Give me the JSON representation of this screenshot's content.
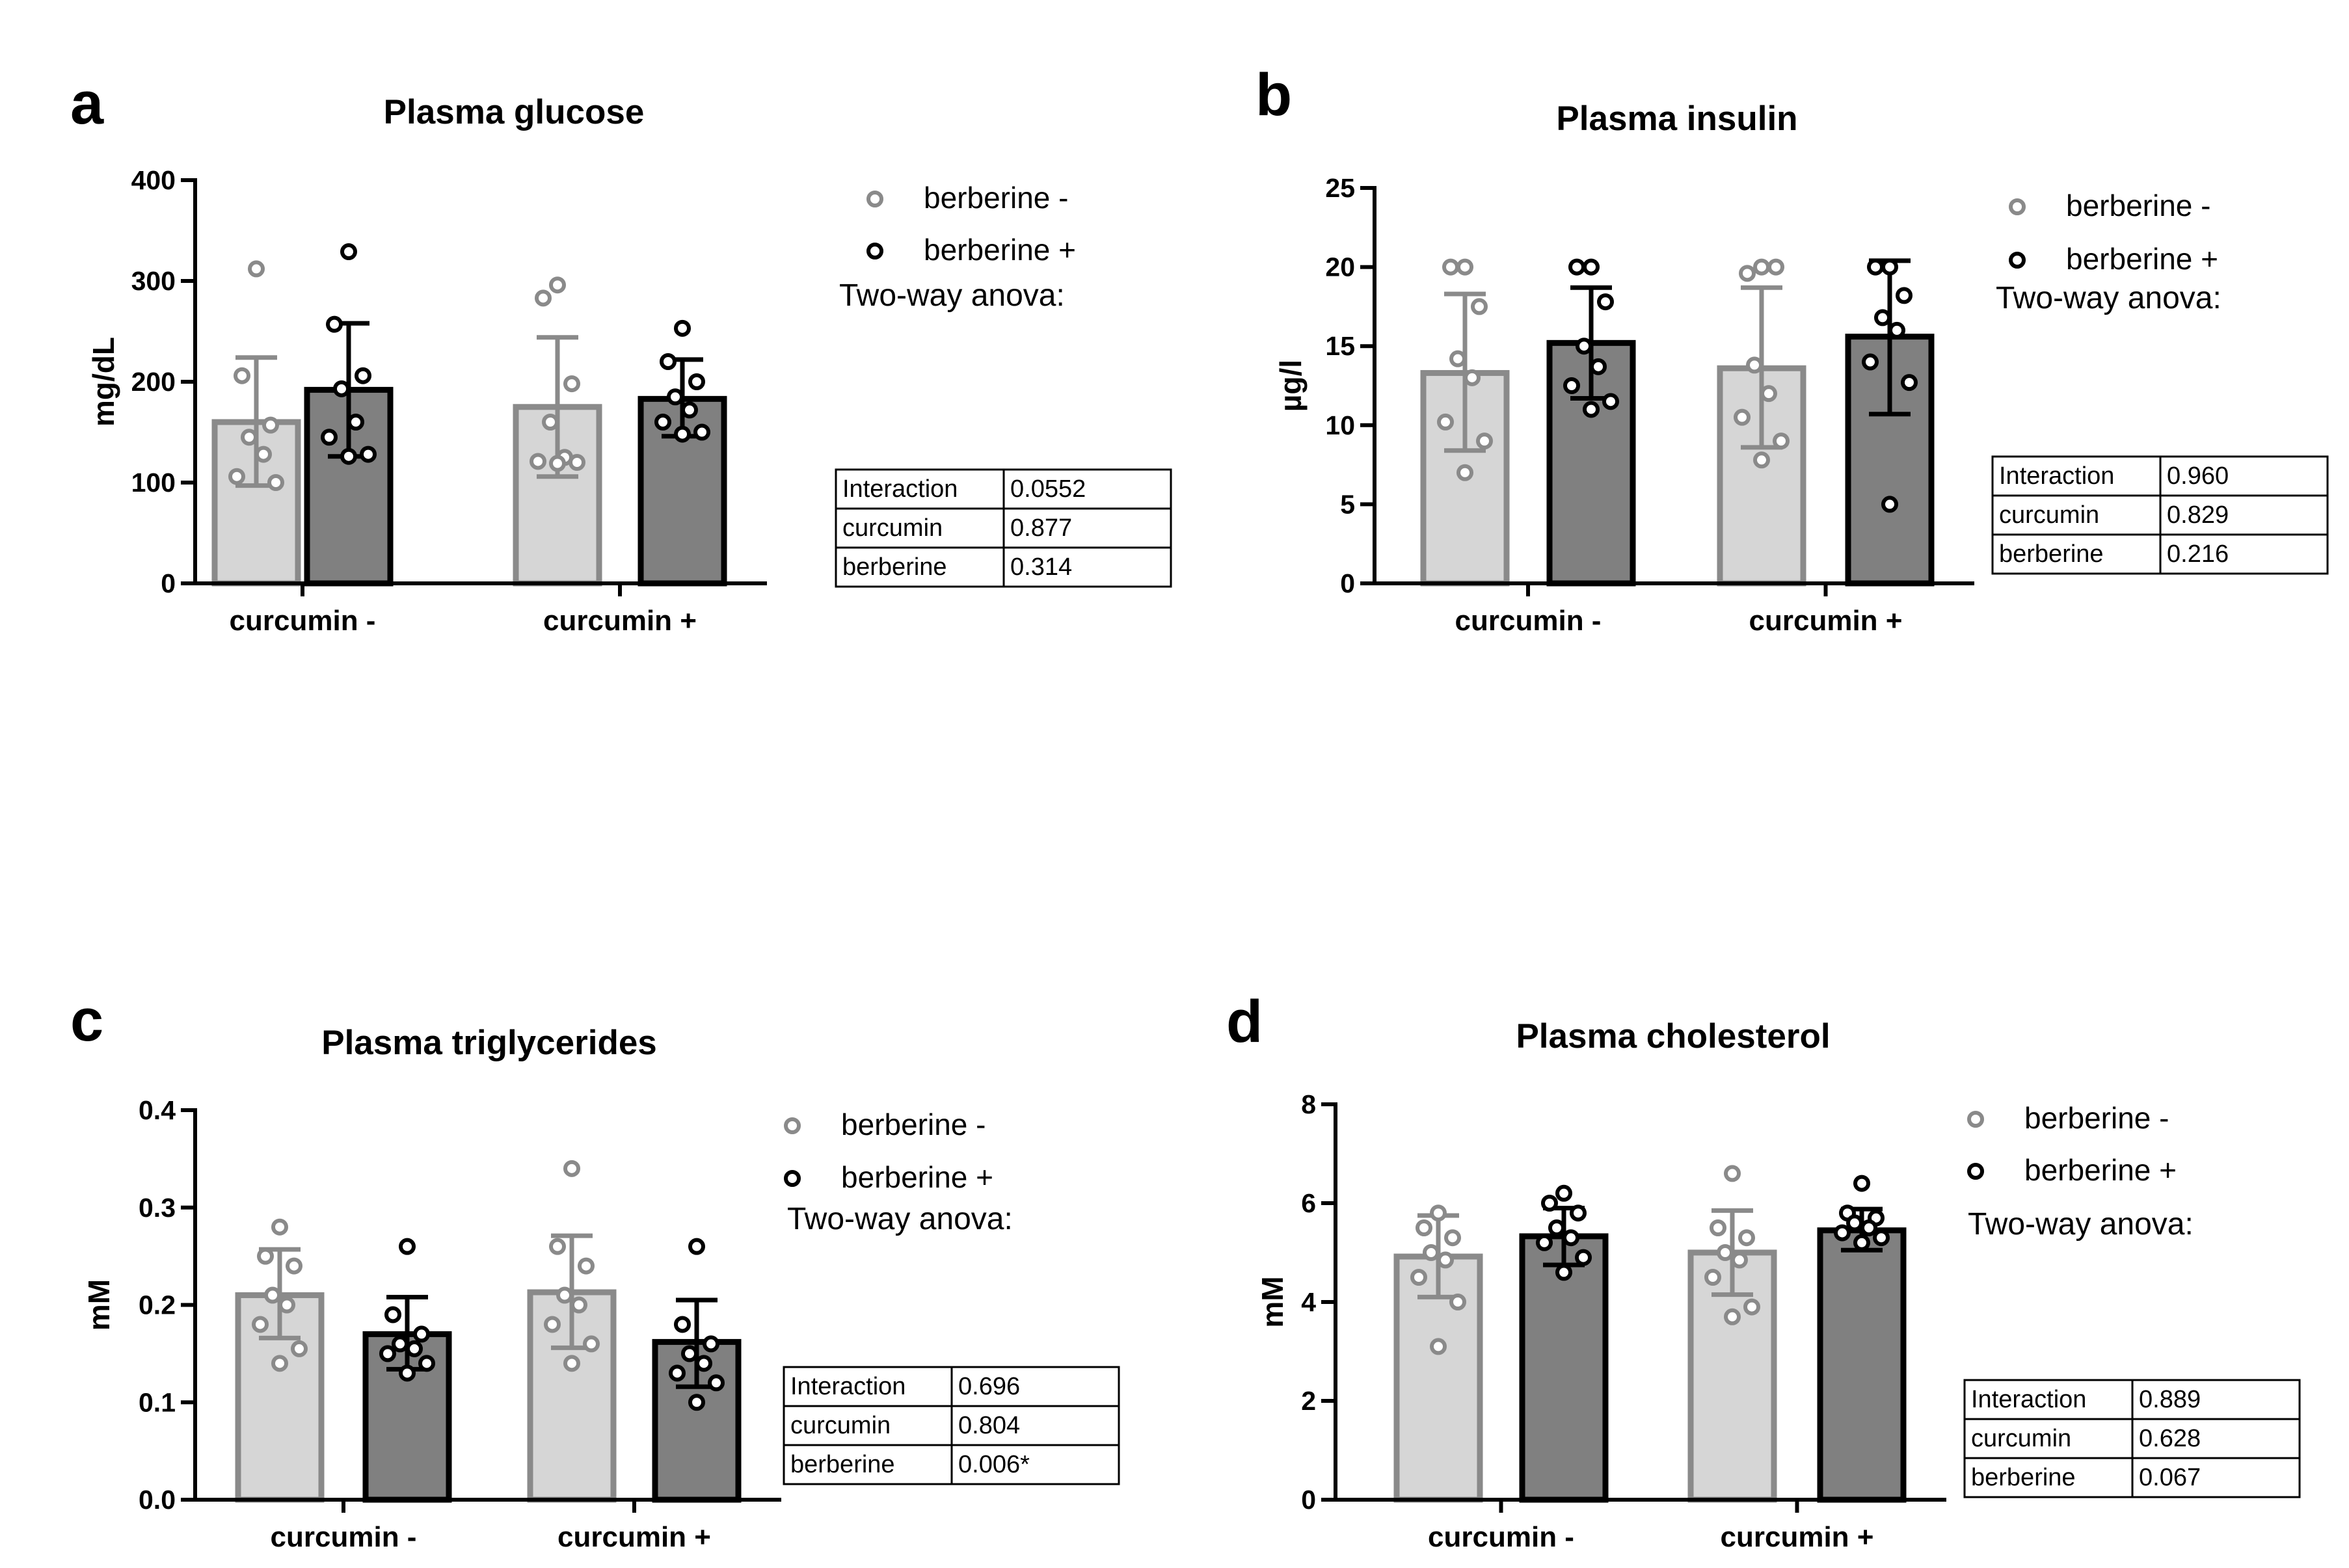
{
  "chart_data": [
    {
      "letter": "a",
      "type": "bar",
      "title": "Plasma glucose",
      "ylabel": "mg/dL",
      "ylim": [
        0,
        400
      ],
      "yticks": [
        "0",
        "100",
        "200",
        "300",
        "400"
      ],
      "categories": [
        "curcumin -",
        "curcumin +"
      ],
      "series": [
        {
          "name": "berberine -",
          "means": [
            160,
            175
          ],
          "sd_low": [
            97,
            106
          ],
          "sd_high": [
            224,
            244
          ],
          "points": [
            [
              312,
              206,
              157,
              145,
              128,
              106,
              100
            ],
            [
              296,
              283,
              198,
              160,
              125,
              121,
              120,
              119
            ]
          ]
        },
        {
          "name": "berberine +",
          "means": [
            192,
            183
          ],
          "sd_low": [
            126,
            146
          ],
          "sd_high": [
            258,
            222
          ],
          "points": [
            [
              329,
              257,
              206,
              193,
              160,
              145,
              128,
              126
            ],
            [
              253,
              220,
              200,
              185,
              172,
              160,
              150,
              148
            ]
          ]
        }
      ],
      "anova": {
        "title": "Two-way anova:",
        "rows": [
          [
            "Interaction",
            "0.0552"
          ],
          [
            "curcumin",
            "0.877"
          ],
          [
            "berberine",
            "0.314"
          ]
        ]
      }
    },
    {
      "letter": "b",
      "type": "bar",
      "title": "Plasma insulin",
      "ylabel": "µg/l",
      "ylim": [
        0,
        25
      ],
      "yticks": [
        "0",
        "5",
        "10",
        "15",
        "20",
        "25"
      ],
      "categories": [
        "curcumin -",
        "curcumin +"
      ],
      "series": [
        {
          "name": "berberine -",
          "means": [
            13.3,
            13.6
          ],
          "sd_low": [
            8.4,
            8.6
          ],
          "sd_high": [
            18.3,
            18.7
          ],
          "points": [
            [
              20,
              20,
              17.5,
              14.2,
              13.0,
              10.2,
              9.0,
              7.0
            ],
            [
              20,
              19.6,
              20,
              13.8,
              12.0,
              10.5,
              9.0,
              7.8
            ]
          ]
        },
        {
          "name": "berberine +",
          "means": [
            15.2,
            15.6
          ],
          "sd_low": [
            11.7,
            10.7
          ],
          "sd_high": [
            18.7,
            20.4
          ],
          "points": [
            [
              20,
              20,
              17.8,
              15.0,
              13.7,
              12.5,
              11.5,
              11.0
            ],
            [
              20,
              20,
              18.2,
              16.8,
              16.0,
              14.0,
              12.7,
              5.0
            ]
          ]
        }
      ],
      "anova": {
        "title": "Two-way anova:",
        "rows": [
          [
            "Interaction",
            "0.960"
          ],
          [
            "curcumin",
            "0.829"
          ],
          [
            "berberine",
            "0.216"
          ]
        ]
      }
    },
    {
      "letter": "c",
      "type": "bar",
      "title": "Plasma triglycerides",
      "ylabel": "mM",
      "ylim": [
        0,
        0.4
      ],
      "yticks": [
        "0.0",
        "0.1",
        "0.2",
        "0.3",
        "0.4"
      ],
      "categories": [
        "curcumin -",
        "curcumin +"
      ],
      "series": [
        {
          "name": "berberine -",
          "means": [
            0.21,
            0.213
          ],
          "sd_low": [
            0.166,
            0.156
          ],
          "sd_high": [
            0.257,
            0.271
          ],
          "points": [
            [
              0.28,
              0.25,
              0.24,
              0.21,
              0.2,
              0.18,
              0.155,
              0.14
            ],
            [
              0.34,
              0.26,
              0.24,
              0.21,
              0.2,
              0.18,
              0.16,
              0.14
            ]
          ]
        },
        {
          "name": "berberine +",
          "means": [
            0.17,
            0.162
          ],
          "sd_low": [
            0.134,
            0.116
          ],
          "sd_high": [
            0.208,
            0.205
          ],
          "points": [
            [
              0.26,
              0.19,
              0.17,
              0.16,
              0.155,
              0.15,
              0.14,
              0.13
            ],
            [
              0.26,
              0.18,
              0.16,
              0.15,
              0.14,
              0.13,
              0.12,
              0.1
            ]
          ]
        }
      ],
      "anova": {
        "title": "Two-way anova:",
        "rows": [
          [
            "Interaction",
            "0.696"
          ],
          [
            "curcumin",
            "0.804"
          ],
          [
            "berberine",
            "0.006*"
          ]
        ]
      }
    },
    {
      "letter": "d",
      "type": "bar",
      "title": "Plasma cholesterol",
      "ylabel": "mM",
      "ylim": [
        0,
        8
      ],
      "yticks": [
        "0",
        "2",
        "4",
        "6",
        "8"
      ],
      "categories": [
        "curcumin -",
        "curcumin +"
      ],
      "series": [
        {
          "name": "berberine -",
          "means": [
            4.92,
            5.0
          ],
          "sd_low": [
            4.1,
            4.15
          ],
          "sd_high": [
            5.75,
            5.85
          ],
          "points": [
            [
              5.8,
              5.5,
              5.3,
              5.0,
              4.85,
              4.5,
              4.0,
              3.1
            ],
            [
              6.6,
              5.5,
              5.3,
              5.0,
              4.85,
              4.5,
              3.9,
              3.7
            ]
          ]
        },
        {
          "name": "berberine +",
          "means": [
            5.33,
            5.45
          ],
          "sd_low": [
            4.75,
            5.05
          ],
          "sd_high": [
            5.9,
            5.88
          ],
          "points": [
            [
              6.2,
              6.0,
              5.8,
              5.5,
              5.3,
              5.2,
              4.9,
              4.6
            ],
            [
              6.4,
              5.8,
              5.7,
              5.6,
              5.5,
              5.4,
              5.3,
              5.2
            ]
          ]
        }
      ],
      "anova": {
        "title": "Two-way anova:",
        "rows": [
          [
            "Interaction",
            "0.889"
          ],
          [
            "curcumin",
            "0.628"
          ],
          [
            "berberine",
            "0.067"
          ]
        ]
      }
    }
  ],
  "colors": {
    "berberine_minus_fill": "#d6d6d6",
    "berberine_minus_stroke": "#8a8a8a",
    "berberine_plus_fill": "#808080",
    "berberine_plus_stroke": "#000000"
  }
}
